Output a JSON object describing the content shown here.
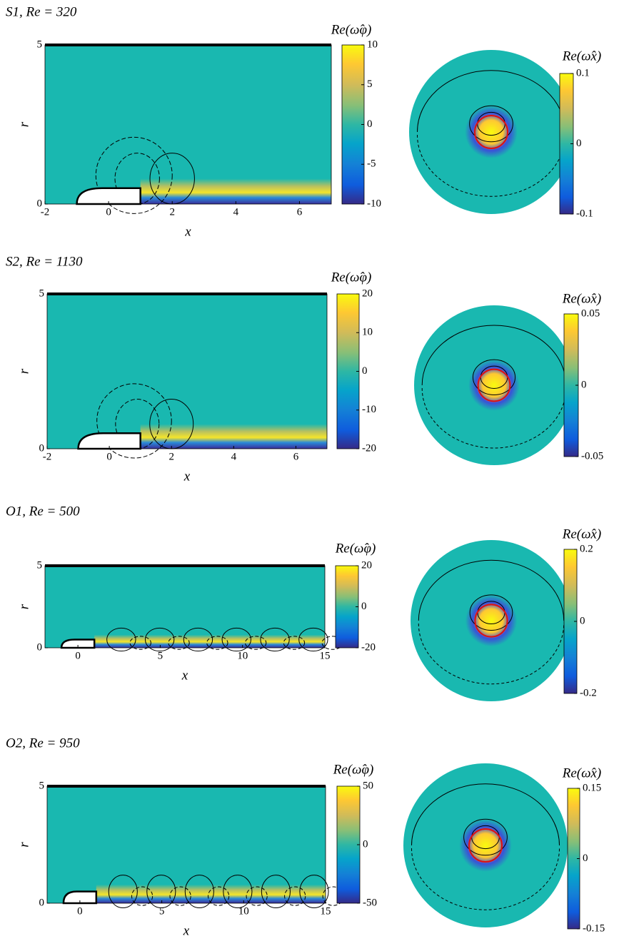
{
  "panels": [
    {
      "title": "S1, Re = 320",
      "field": {
        "xlabel": "x",
        "ylabel": "r",
        "xlim": [
          -2,
          7
        ],
        "rlim": [
          0,
          5
        ],
        "xticks": [
          -2,
          0,
          2,
          4,
          6
        ],
        "rticks": [
          0,
          5
        ],
        "colorbar": {
          "label": "Re(ω̂φ)",
          "lim": [
            -10,
            10
          ],
          "ticks": [
            -10,
            -5,
            0,
            5,
            10
          ]
        }
      },
      "section": {
        "colorbar": {
          "label": "Re(ω̂x)",
          "lim": [
            -0.1,
            0.1
          ],
          "ticks": [
            -0.1,
            0,
            0.1
          ]
        }
      }
    },
    {
      "title": "S2, Re = 1130",
      "field": {
        "xlabel": "x",
        "ylabel": "r",
        "xlim": [
          -2,
          7
        ],
        "rlim": [
          0,
          5
        ],
        "xticks": [
          -2,
          0,
          2,
          4,
          6
        ],
        "rticks": [
          0,
          5
        ],
        "colorbar": {
          "label": "Re(ω̂φ)",
          "lim": [
            -20,
            20
          ],
          "ticks": [
            -20,
            -10,
            0,
            10,
            20
          ]
        }
      },
      "section": {
        "colorbar": {
          "label": "Re(ω̂x)",
          "lim": [
            -0.05,
            0.05
          ],
          "ticks": [
            -0.05,
            0,
            0.05
          ]
        }
      }
    },
    {
      "title": "O1, Re = 500",
      "field": {
        "xlabel": "x",
        "ylabel": "r",
        "xlim": [
          -2,
          15
        ],
        "rlim": [
          0,
          5
        ],
        "xticks": [
          0,
          5,
          10,
          15
        ],
        "rticks": [
          0,
          5
        ],
        "colorbar": {
          "label": "Re(ω̂φ)",
          "lim": [
            -20,
            20
          ],
          "ticks": [
            -20,
            0,
            20
          ]
        }
      },
      "section": {
        "colorbar": {
          "label": "Re(ω̂x)",
          "lim": [
            -0.2,
            0.2
          ],
          "ticks": [
            -0.2,
            0,
            0.2
          ]
        }
      }
    },
    {
      "title": "O2, Re = 950",
      "field": {
        "xlabel": "x",
        "ylabel": "r",
        "xlim": [
          -2,
          15
        ],
        "rlim": [
          0,
          5
        ],
        "xticks": [
          0,
          5,
          10,
          15
        ],
        "rticks": [
          0,
          5
        ],
        "colorbar": {
          "label": "Re(ω̂φ)",
          "lim": [
            -50,
            50
          ],
          "ticks": [
            -50,
            0,
            50
          ]
        }
      },
      "section": {
        "colorbar": {
          "label": "Re(ω̂x)",
          "lim": [
            -0.15,
            0.15
          ],
          "ticks": [
            -0.15,
            0,
            0.15
          ]
        }
      }
    }
  ]
}
